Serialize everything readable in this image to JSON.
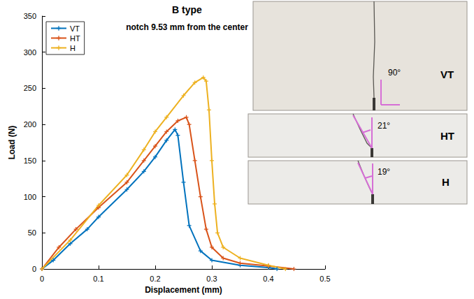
{
  "chart_data": {
    "type": "line",
    "title": "B type",
    "subtitle": "notch 9.53 mm from the center",
    "x_label": "Displacement (mm)",
    "y_label": "Load (N)",
    "xlim": [
      0,
      0.5
    ],
    "xticks": [
      0,
      0.1,
      0.2,
      0.3,
      0.4,
      0.5
    ],
    "ylim": [
      0,
      350
    ],
    "yticks": [
      0,
      50,
      100,
      150,
      200,
      250,
      300,
      350
    ],
    "grid": false,
    "legend": "upper left",
    "marker": "plus",
    "series": [
      {
        "name": "VT",
        "color": "#0072BD",
        "x": [
          0,
          0.02,
          0.05,
          0.08,
          0.1,
          0.15,
          0.18,
          0.2,
          0.22,
          0.235,
          0.24,
          0.25,
          0.26,
          0.28,
          0.3,
          0.35,
          0.4,
          0.415
        ],
        "values": [
          0,
          12,
          35,
          55,
          72,
          110,
          135,
          155,
          178,
          193,
          185,
          120,
          60,
          25,
          12,
          5,
          2,
          0
        ]
      },
      {
        "name": "HT",
        "color": "#D95319",
        "x": [
          0,
          0.03,
          0.06,
          0.1,
          0.15,
          0.18,
          0.2,
          0.22,
          0.24,
          0.255,
          0.26,
          0.27,
          0.28,
          0.29,
          0.3,
          0.32,
          0.35,
          0.4,
          0.445
        ],
        "values": [
          0,
          30,
          55,
          85,
          120,
          150,
          170,
          190,
          205,
          210,
          200,
          150,
          100,
          55,
          30,
          15,
          8,
          4,
          0
        ]
      },
      {
        "name": "H",
        "color": "#EDB120",
        "x": [
          0,
          0.05,
          0.1,
          0.15,
          0.18,
          0.2,
          0.22,
          0.25,
          0.27,
          0.285,
          0.29,
          0.295,
          0.3,
          0.305,
          0.31,
          0.32,
          0.35,
          0.4,
          0.43
        ],
        "values": [
          0,
          40,
          88,
          130,
          165,
          190,
          210,
          240,
          258,
          265,
          260,
          220,
          150,
          90,
          50,
          30,
          15,
          5,
          0
        ]
      }
    ],
    "annotations": [
      {
        "panel": "VT",
        "angle": "90°"
      },
      {
        "panel": "HT",
        "angle": "21°"
      },
      {
        "panel": "H",
        "angle": "19°"
      }
    ]
  }
}
